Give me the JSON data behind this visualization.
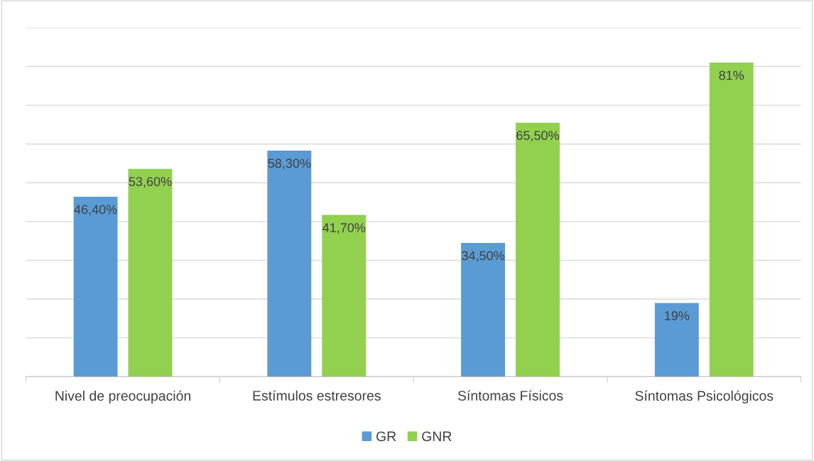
{
  "chart_data": {
    "type": "bar",
    "categories": [
      "Nivel de preocupación",
      "Estímulos estresores",
      "Síntomas Físicos",
      "Síntomas Psicológicos"
    ],
    "series": [
      {
        "name": "GR",
        "color": "#5b9bd5",
        "values": [
          46.4,
          58.3,
          34.5,
          19
        ],
        "value_labels": [
          "46,40%",
          "58,30%",
          "34,50%",
          "19%"
        ]
      },
      {
        "name": "GNR",
        "color": "#92d050",
        "values": [
          53.6,
          41.7,
          65.5,
          81
        ],
        "value_labels": [
          "53,60%",
          "41,70%",
          "65,50%",
          "81%"
        ]
      }
    ],
    "ylim": [
      0,
      90
    ],
    "yticks": [
      {
        "value": 0,
        "label": null
      },
      {
        "value": 10,
        "label": null
      },
      {
        "value": 20,
        "label": null
      },
      {
        "value": 30,
        "label": null
      },
      {
        "value": 40,
        "label": null
      },
      {
        "value": 50,
        "label": null
      },
      {
        "value": 60,
        "label": null
      },
      {
        "value": 70,
        "label": null
      },
      {
        "value": 80,
        "label": null
      },
      {
        "value": 90,
        "label": null
      }
    ],
    "tick_labels": "x",
    "grid": "y",
    "legend": "bottom"
  }
}
